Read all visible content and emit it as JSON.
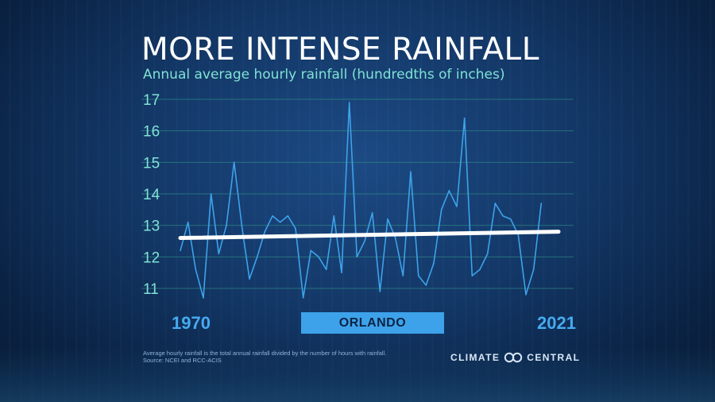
{
  "title": "MORE INTENSE RAINFALL",
  "subtitle": "Annual average hourly rainfall (hundredths of inches)",
  "city_label": "ORLANDO",
  "year_start_label": "1970",
  "year_end_label": "2021",
  "footnote_line1": "Average hourly rainfall is the total annual rainfall divided by the number of hours with rainfall.",
  "footnote_line2": "Source: NCEI and RCC-ACIS",
  "brand": {
    "left": "CLIMATE",
    "right": "CENTRAL",
    "logo_icon": "climate-central-logo"
  },
  "colors": {
    "background": "#0b2344",
    "line": "#3da2ea",
    "trend": "#ffffff",
    "grid": "#2f8f86",
    "tick_labels": "#7fe3d4",
    "city_box": "#3da2ea"
  },
  "chart_data": {
    "type": "line",
    "title": "MORE INTENSE RAINFALL",
    "subtitle": "Annual average hourly rainfall (hundredths of inches)",
    "xlabel": "",
    "ylabel": "",
    "ylim": [
      10.5,
      17
    ],
    "yticks": [
      11,
      12,
      13,
      14,
      15,
      16,
      17
    ],
    "grid": true,
    "x": [
      1970,
      1971,
      1972,
      1973,
      1974,
      1975,
      1976,
      1977,
      1978,
      1979,
      1980,
      1981,
      1982,
      1983,
      1984,
      1985,
      1986,
      1987,
      1988,
      1989,
      1990,
      1991,
      1992,
      1993,
      1994,
      1995,
      1996,
      1997,
      1998,
      1999,
      2000,
      2001,
      2002,
      2003,
      2004,
      2005,
      2006,
      2007,
      2008,
      2009,
      2010,
      2011,
      2012,
      2013,
      2014,
      2015,
      2016,
      2017,
      2018,
      2019,
      2020,
      2021
    ],
    "series": [
      {
        "values": [
          12.2,
          13.1,
          11.6,
          10.7,
          14.0,
          12.1,
          13.0,
          15.0,
          13.0,
          11.3,
          12.0,
          12.8,
          13.3,
          13.1,
          13.3,
          12.9,
          10.7,
          12.2,
          12.0,
          11.6,
          13.3,
          11.5,
          16.9,
          12.0,
          12.5,
          13.4,
          10.9,
          13.2,
          12.6,
          11.4,
          14.7,
          11.4,
          11.1,
          11.8,
          13.5,
          14.1,
          13.6,
          16.4,
          11.4,
          11.6,
          12.1,
          13.7,
          13.3,
          13.2,
          12.7,
          10.8,
          11.6,
          13.7,
          null,
          null,
          null,
          null
        ]
      }
    ],
    "trend": {
      "start": 12.6,
      "end": 12.8
    }
  }
}
